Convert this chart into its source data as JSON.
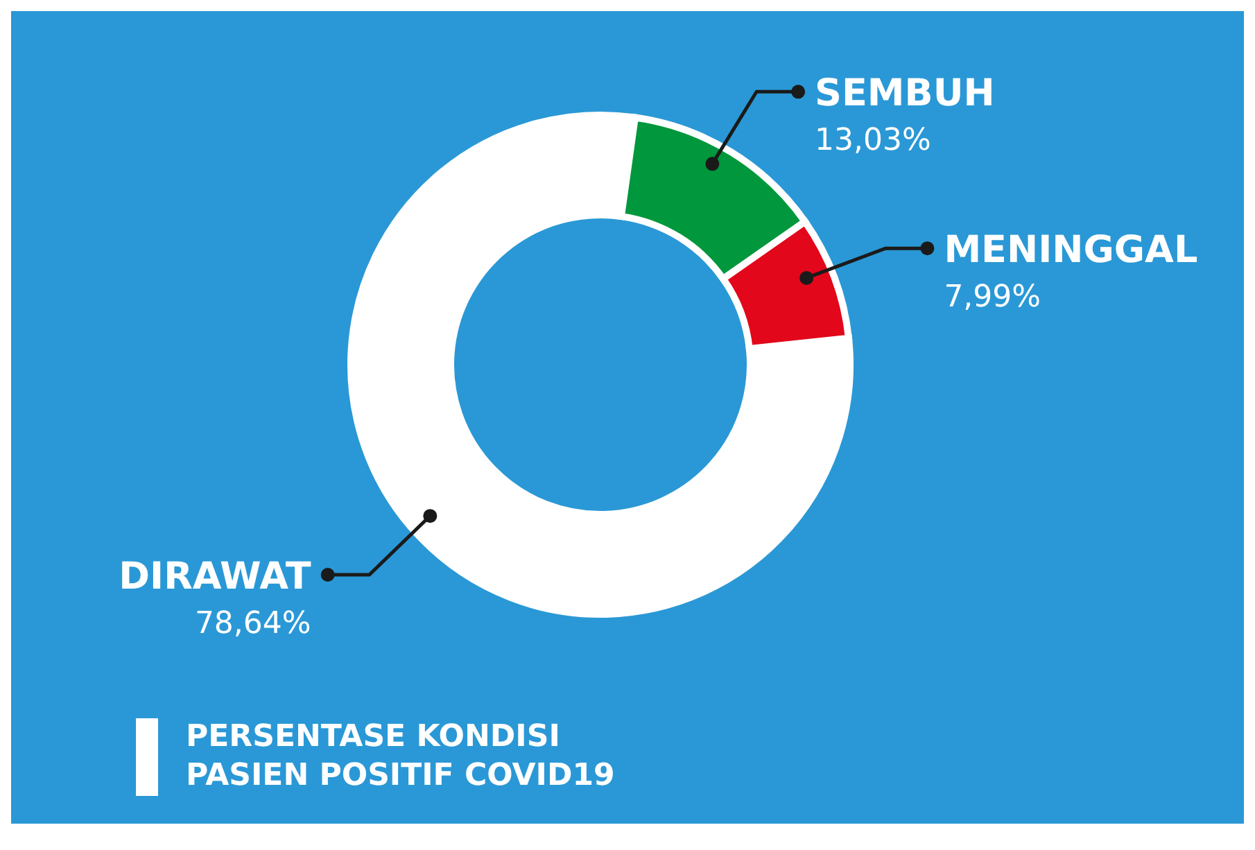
{
  "chart_data": {
    "type": "donut",
    "title": "PERSENTASE KONDISI PASIEN POSITIF COVID19",
    "categories": [
      "DIRAWAT",
      "SEMBUH",
      "MENINGGAL"
    ],
    "values": [
      78.64,
      13.03,
      7.99
    ],
    "value_labels": [
      "78,64%",
      "13,03%",
      "7,99%"
    ],
    "colors": [
      "#ffffff",
      "#00973d",
      "#e2071a"
    ]
  }
}
